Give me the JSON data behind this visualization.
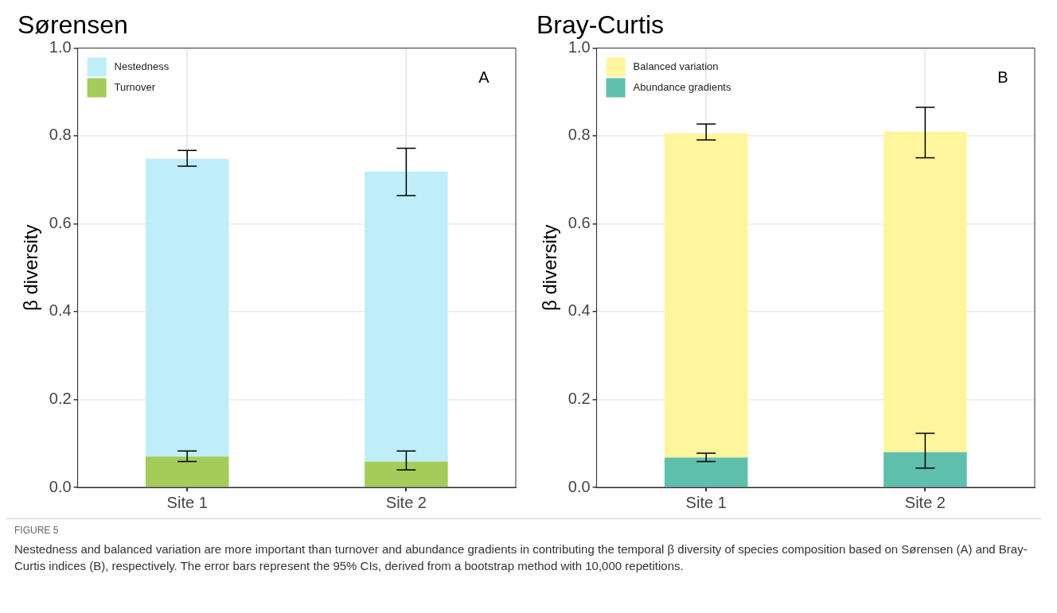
{
  "chart_data": [
    {
      "type": "bar",
      "title": "Sørensen",
      "ylabel": "β diversity",
      "categories": [
        "Site 1",
        "Site 2"
      ],
      "stacked": true,
      "grid": true,
      "legend": "top left",
      "series": [
        {
          "name": "Turnover",
          "color": "#a3cc5a",
          "values": [
            0.07,
            0.059
          ],
          "errors": [
            [
              0.059,
              0.083
            ],
            [
              0.04,
              0.083
            ]
          ]
        },
        {
          "name": "Nestedness",
          "color": "#bfeefa",
          "values": [
            0.678,
            0.66
          ],
          "errors": [
            [
              0.731,
              0.767
            ],
            [
              0.664,
              0.772
            ]
          ]
        }
      ],
      "ylim": [
        0,
        1
      ],
      "yticks": [
        {
          "value": 0,
          "label": "0.0"
        },
        {
          "value": 0.2,
          "label": "0.2"
        },
        {
          "value": 0.4,
          "label": "0.4"
        },
        {
          "value": 0.6,
          "label": "0.6"
        },
        {
          "value": 0.8,
          "label": "0.8"
        },
        {
          "value": 1,
          "label": "1.0"
        }
      ],
      "annotations": [
        "A",
        "FIGURE 5",
        "Nestedness and balanced variation are more important than turnover and abundance gradients in contributing the temporal β diversity of species composition based on Sørensen (A) and Bray-Curtis indices (B), respectively. The error bars represent the 95% CIs, derived from a bootstrap method with 10,000 repetitions."
      ]
    },
    {
      "type": "bar",
      "title": "Bray-Curtis",
      "ylabel": "β diversity",
      "categories": [
        "Site 1",
        "Site 2"
      ],
      "stacked": true,
      "grid": true,
      "legend": "top left",
      "series": [
        {
          "name": "Abundance gradients",
          "color": "#5fbfad",
          "values": [
            0.068,
            0.08
          ],
          "errors": [
            [
              0.059,
              0.078
            ],
            [
              0.044,
              0.123
            ]
          ]
        },
        {
          "name": "Balanced variation",
          "color": "#fff59d",
          "values": [
            0.738,
            0.73
          ],
          "errors": [
            [
              0.791,
              0.827
            ],
            [
              0.75,
              0.865
            ]
          ]
        }
      ],
      "ylim": [
        0,
        1
      ],
      "yticks": [
        {
          "value": 0,
          "label": "0.0"
        },
        {
          "value": 0.2,
          "label": "0.2"
        },
        {
          "value": 0.4,
          "label": "0.4"
        },
        {
          "value": 0.6,
          "label": "0.6"
        },
        {
          "value": 0.8,
          "label": "0.8"
        },
        {
          "value": 1,
          "label": "1.0"
        }
      ],
      "annotations": [
        "B"
      ]
    }
  ]
}
